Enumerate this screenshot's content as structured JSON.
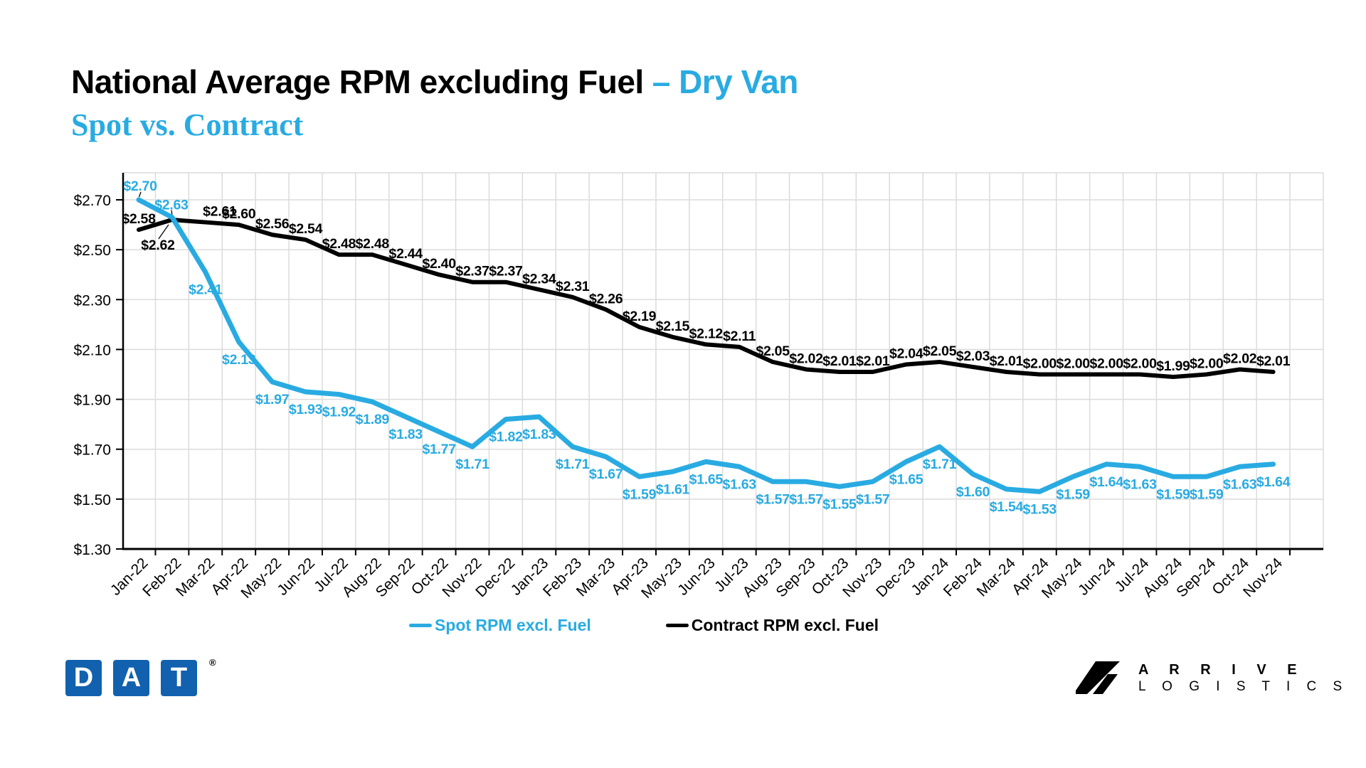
{
  "title": {
    "main": "National Average RPM excluding Fuel",
    "highlight": "– Dry Van",
    "subtitle": "Spot vs. Contract"
  },
  "colors": {
    "accent_blue": "#29ABE2",
    "contract_black": "#000000",
    "dat_blue": "#1161AE",
    "grid_gray": "#DBDBDB"
  },
  "chart_data": {
    "type": "line",
    "x": [
      "Jan-22",
      "Feb-22",
      "Mar-22",
      "Apr-22",
      "May-22",
      "Jun-22",
      "Jul-22",
      "Aug-22",
      "Sep-22",
      "Oct-22",
      "Nov-22",
      "Dec-22",
      "Jan-23",
      "Feb-23",
      "Mar-23",
      "Apr-23",
      "May-23",
      "Jun-23",
      "Jul-23",
      "Aug-23",
      "Sep-23",
      "Oct-23",
      "Nov-23",
      "Dec-23",
      "Jan-24",
      "Feb-24",
      "Mar-24",
      "Apr-24",
      "May-24",
      "Jun-24",
      "Jul-24",
      "Aug-24",
      "Sep-24",
      "Oct-24",
      "Nov-24"
    ],
    "series": [
      {
        "name": "Spot RPM excl. Fuel",
        "color": "#29ABE2",
        "values": [
          2.7,
          2.63,
          2.41,
          2.13,
          1.97,
          1.93,
          1.92,
          1.89,
          1.83,
          1.77,
          1.71,
          1.82,
          1.83,
          1.71,
          1.67,
          1.59,
          1.61,
          1.65,
          1.63,
          1.57,
          1.57,
          1.55,
          1.57,
          1.65,
          1.71,
          1.6,
          1.54,
          1.53,
          1.59,
          1.64,
          1.63,
          1.59,
          1.59,
          1.63,
          1.64
        ]
      },
      {
        "name": "Contract RPM excl. Fuel",
        "color": "#000000",
        "values": [
          2.58,
          2.62,
          2.61,
          2.6,
          2.56,
          2.54,
          2.48,
          2.48,
          2.44,
          2.4,
          2.37,
          2.37,
          2.34,
          2.31,
          2.26,
          2.19,
          2.15,
          2.12,
          2.11,
          2.05,
          2.02,
          2.01,
          2.01,
          2.04,
          2.05,
          2.03,
          2.01,
          2.0,
          2.0,
          2.0,
          2.0,
          1.99,
          2.0,
          2.02,
          2.01
        ]
      }
    ],
    "y_axis": {
      "min": 1.3,
      "max": 2.7,
      "step": 0.2,
      "tick_prefix": "$"
    },
    "y_ticks": [
      "$1.30",
      "$1.50",
      "$1.70",
      "$1.90",
      "$2.10",
      "$2.30",
      "$2.50",
      "$2.70"
    ],
    "grid": true,
    "point_labels": true,
    "label_format": "$0.00",
    "legend_position": "bottom"
  },
  "legend": {
    "items": [
      {
        "label": "Spot RPM excl. Fuel"
      },
      {
        "label": "Contract RPM excl. Fuel"
      }
    ]
  },
  "footer": {
    "dat_letters": [
      "D",
      "A",
      "T"
    ],
    "dat_registered": "®",
    "arrive_line1": "A R R I V E",
    "arrive_line2": "L O G I S T I C S"
  }
}
